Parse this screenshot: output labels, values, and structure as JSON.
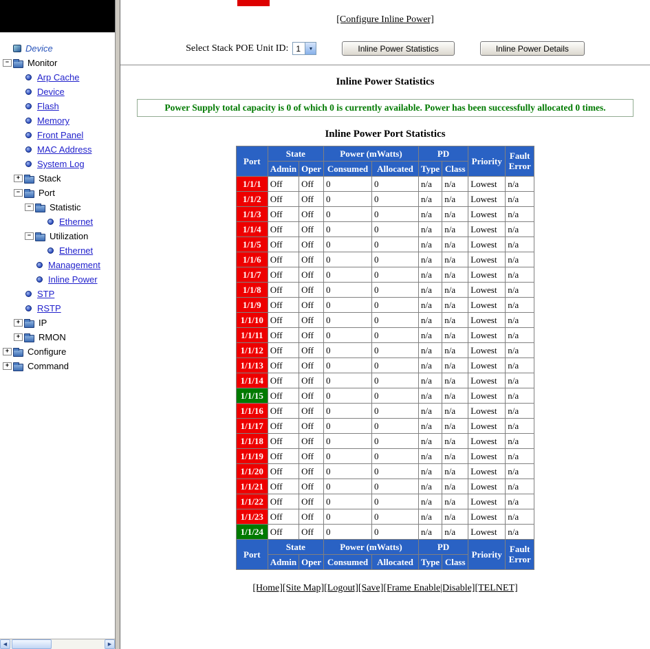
{
  "colors": {
    "header_bg": "#2A62C4",
    "port_red": "#EE0000",
    "port_green": "#007A00",
    "status_green": "#007A00",
    "link_blue": "#2222CC"
  },
  "sidebar": {
    "tree": [
      {
        "label": "Device",
        "icon": "device",
        "box": null,
        "level": 0,
        "link": false,
        "italic": true
      },
      {
        "label": "Monitor",
        "icon": "folder",
        "box": "minus",
        "level": 0,
        "link": false
      },
      {
        "label": "Arp Cache",
        "icon": "bullet",
        "box": null,
        "level": 1,
        "link": true
      },
      {
        "label": "Device",
        "icon": "bullet",
        "box": null,
        "level": 1,
        "link": true
      },
      {
        "label": "Flash",
        "icon": "bullet",
        "box": null,
        "level": 1,
        "link": true
      },
      {
        "label": "Memory",
        "icon": "bullet",
        "box": null,
        "level": 1,
        "link": true
      },
      {
        "label": "Front Panel",
        "icon": "bullet",
        "box": null,
        "level": 1,
        "link": true
      },
      {
        "label": "MAC Address",
        "icon": "bullet",
        "box": null,
        "level": 1,
        "link": true
      },
      {
        "label": "System Log",
        "icon": "bullet",
        "box": null,
        "level": 1,
        "link": true
      },
      {
        "label": "Stack",
        "icon": "folder",
        "box": "plus",
        "level": 1,
        "link": false
      },
      {
        "label": "Port",
        "icon": "folder",
        "box": "minus",
        "level": 1,
        "link": false
      },
      {
        "label": "Statistic",
        "icon": "folder",
        "box": "minus",
        "level": 2,
        "link": false
      },
      {
        "label": "Ethernet",
        "icon": "bullet",
        "box": null,
        "level": 3,
        "link": true
      },
      {
        "label": "Utilization",
        "icon": "folder",
        "box": "minus",
        "level": 2,
        "link": false
      },
      {
        "label": "Ethernet",
        "icon": "bullet",
        "box": null,
        "level": 3,
        "link": true
      },
      {
        "label": "Management",
        "icon": "bullet",
        "box": null,
        "level": 2,
        "link": true
      },
      {
        "label": "Inline Power",
        "icon": "bullet",
        "box": null,
        "level": 2,
        "link": true
      },
      {
        "label": "STP",
        "icon": "bullet",
        "box": null,
        "level": 1,
        "link": true
      },
      {
        "label": "RSTP",
        "icon": "bullet",
        "box": null,
        "level": 1,
        "link": true
      },
      {
        "label": "IP",
        "icon": "folder",
        "box": "plus",
        "level": 1,
        "link": false
      },
      {
        "label": "RMON",
        "icon": "folder",
        "box": "plus",
        "level": 1,
        "link": false
      },
      {
        "label": "Configure",
        "icon": "folder",
        "box": "plus",
        "level": 0,
        "link": false
      },
      {
        "label": "Command",
        "icon": "folder",
        "box": "plus",
        "level": 0,
        "link": false
      }
    ]
  },
  "main": {
    "configure_link": "[Configure Inline Power]",
    "unit_select": {
      "label": "Select Stack POE Unit ID:",
      "value": "1"
    },
    "buttons": {
      "statistics": "Inline Power Statistics",
      "details": "Inline Power Details"
    },
    "stats_title": "Inline Power Statistics",
    "status_message": "Power Supply total capacity is 0 of which 0 is currently available. Power has been successfully allocated 0 times.",
    "table_title": "Inline Power Port Statistics",
    "footer_links": [
      "[Home]",
      "[Site Map]",
      "[Logout]",
      "[Save]",
      "[Frame Enable|Disable]",
      "[TELNET]"
    ]
  },
  "table": {
    "header": {
      "port": "Port",
      "state": "State",
      "power": "Power (mWatts)",
      "pd": "PD",
      "priority": "Priority",
      "fault_line1": "Fault",
      "fault_line2": "Error",
      "admin": "Admin",
      "oper": "Oper",
      "consumed": "Consumed",
      "allocated": "Allocated",
      "type": "Type",
      "class": "Class"
    },
    "rows": [
      {
        "port": "1/1/1",
        "color": "red",
        "admin": "Off",
        "oper": "Off",
        "consumed": "0",
        "allocated": "0",
        "type": "n/a",
        "class": "n/a",
        "priority": "Lowest",
        "fault": "n/a"
      },
      {
        "port": "1/1/2",
        "color": "red",
        "admin": "Off",
        "oper": "Off",
        "consumed": "0",
        "allocated": "0",
        "type": "n/a",
        "class": "n/a",
        "priority": "Lowest",
        "fault": "n/a"
      },
      {
        "port": "1/1/3",
        "color": "red",
        "admin": "Off",
        "oper": "Off",
        "consumed": "0",
        "allocated": "0",
        "type": "n/a",
        "class": "n/a",
        "priority": "Lowest",
        "fault": "n/a"
      },
      {
        "port": "1/1/4",
        "color": "red",
        "admin": "Off",
        "oper": "Off",
        "consumed": "0",
        "allocated": "0",
        "type": "n/a",
        "class": "n/a",
        "priority": "Lowest",
        "fault": "n/a"
      },
      {
        "port": "1/1/5",
        "color": "red",
        "admin": "Off",
        "oper": "Off",
        "consumed": "0",
        "allocated": "0",
        "type": "n/a",
        "class": "n/a",
        "priority": "Lowest",
        "fault": "n/a"
      },
      {
        "port": "1/1/6",
        "color": "red",
        "admin": "Off",
        "oper": "Off",
        "consumed": "0",
        "allocated": "0",
        "type": "n/a",
        "class": "n/a",
        "priority": "Lowest",
        "fault": "n/a"
      },
      {
        "port": "1/1/7",
        "color": "red",
        "admin": "Off",
        "oper": "Off",
        "consumed": "0",
        "allocated": "0",
        "type": "n/a",
        "class": "n/a",
        "priority": "Lowest",
        "fault": "n/a"
      },
      {
        "port": "1/1/8",
        "color": "red",
        "admin": "Off",
        "oper": "Off",
        "consumed": "0",
        "allocated": "0",
        "type": "n/a",
        "class": "n/a",
        "priority": "Lowest",
        "fault": "n/a"
      },
      {
        "port": "1/1/9",
        "color": "red",
        "admin": "Off",
        "oper": "Off",
        "consumed": "0",
        "allocated": "0",
        "type": "n/a",
        "class": "n/a",
        "priority": "Lowest",
        "fault": "n/a"
      },
      {
        "port": "1/1/10",
        "color": "red",
        "admin": "Off",
        "oper": "Off",
        "consumed": "0",
        "allocated": "0",
        "type": "n/a",
        "class": "n/a",
        "priority": "Lowest",
        "fault": "n/a"
      },
      {
        "port": "1/1/11",
        "color": "red",
        "admin": "Off",
        "oper": "Off",
        "consumed": "0",
        "allocated": "0",
        "type": "n/a",
        "class": "n/a",
        "priority": "Lowest",
        "fault": "n/a"
      },
      {
        "port": "1/1/12",
        "color": "red",
        "admin": "Off",
        "oper": "Off",
        "consumed": "0",
        "allocated": "0",
        "type": "n/a",
        "class": "n/a",
        "priority": "Lowest",
        "fault": "n/a"
      },
      {
        "port": "1/1/13",
        "color": "red",
        "admin": "Off",
        "oper": "Off",
        "consumed": "0",
        "allocated": "0",
        "type": "n/a",
        "class": "n/a",
        "priority": "Lowest",
        "fault": "n/a"
      },
      {
        "port": "1/1/14",
        "color": "red",
        "admin": "Off",
        "oper": "Off",
        "consumed": "0",
        "allocated": "0",
        "type": "n/a",
        "class": "n/a",
        "priority": "Lowest",
        "fault": "n/a"
      },
      {
        "port": "1/1/15",
        "color": "green",
        "admin": "Off",
        "oper": "Off",
        "consumed": "0",
        "allocated": "0",
        "type": "n/a",
        "class": "n/a",
        "priority": "Lowest",
        "fault": "n/a"
      },
      {
        "port": "1/1/16",
        "color": "red",
        "admin": "Off",
        "oper": "Off",
        "consumed": "0",
        "allocated": "0",
        "type": "n/a",
        "class": "n/a",
        "priority": "Lowest",
        "fault": "n/a"
      },
      {
        "port": "1/1/17",
        "color": "red",
        "admin": "Off",
        "oper": "Off",
        "consumed": "0",
        "allocated": "0",
        "type": "n/a",
        "class": "n/a",
        "priority": "Lowest",
        "fault": "n/a"
      },
      {
        "port": "1/1/18",
        "color": "red",
        "admin": "Off",
        "oper": "Off",
        "consumed": "0",
        "allocated": "0",
        "type": "n/a",
        "class": "n/a",
        "priority": "Lowest",
        "fault": "n/a"
      },
      {
        "port": "1/1/19",
        "color": "red",
        "admin": "Off",
        "oper": "Off",
        "consumed": "0",
        "allocated": "0",
        "type": "n/a",
        "class": "n/a",
        "priority": "Lowest",
        "fault": "n/a"
      },
      {
        "port": "1/1/20",
        "color": "red",
        "admin": "Off",
        "oper": "Off",
        "consumed": "0",
        "allocated": "0",
        "type": "n/a",
        "class": "n/a",
        "priority": "Lowest",
        "fault": "n/a"
      },
      {
        "port": "1/1/21",
        "color": "red",
        "admin": "Off",
        "oper": "Off",
        "consumed": "0",
        "allocated": "0",
        "type": "n/a",
        "class": "n/a",
        "priority": "Lowest",
        "fault": "n/a"
      },
      {
        "port": "1/1/22",
        "color": "red",
        "admin": "Off",
        "oper": "Off",
        "consumed": "0",
        "allocated": "0",
        "type": "n/a",
        "class": "n/a",
        "priority": "Lowest",
        "fault": "n/a"
      },
      {
        "port": "1/1/23",
        "color": "red",
        "admin": "Off",
        "oper": "Off",
        "consumed": "0",
        "allocated": "0",
        "type": "n/a",
        "class": "n/a",
        "priority": "Lowest",
        "fault": "n/a"
      },
      {
        "port": "1/1/24",
        "color": "green",
        "admin": "Off",
        "oper": "Off",
        "consumed": "0",
        "allocated": "0",
        "type": "n/a",
        "class": "n/a",
        "priority": "Lowest",
        "fault": "n/a"
      }
    ]
  }
}
